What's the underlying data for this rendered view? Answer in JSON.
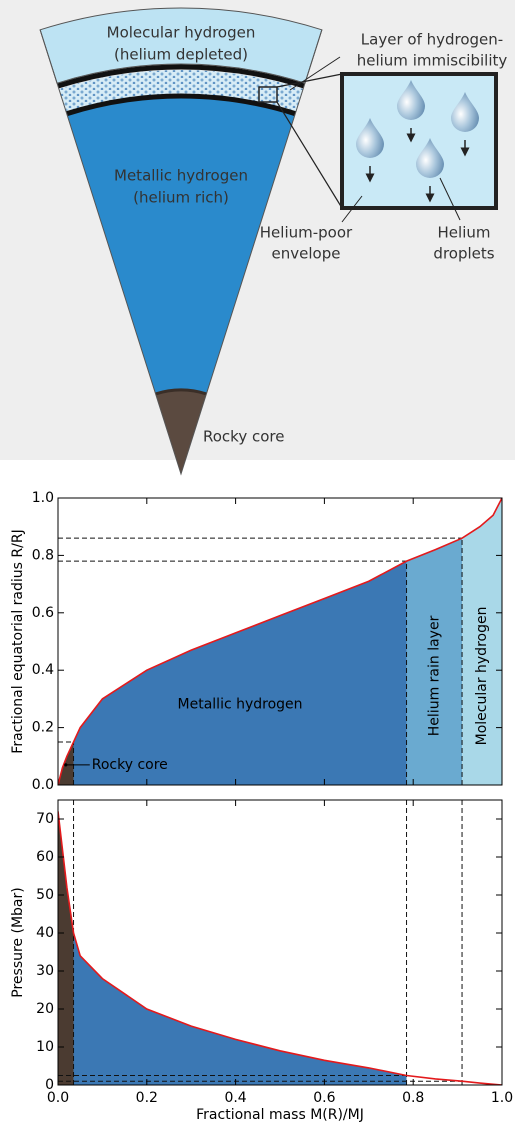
{
  "diagram": {
    "molecular_label": [
      "Molecular hydrogen",
      "(helium depleted)"
    ],
    "immiscibility_label": [
      "Layer of hydrogen-",
      "helium immiscibility"
    ],
    "metallic_label": [
      "Metallic hydrogen",
      "(helium rich)"
    ],
    "envelope_label": [
      "Helium-poor",
      "envelope"
    ],
    "droplets_label": [
      "Helium",
      "droplets"
    ],
    "core_label": "Rocky core"
  },
  "chart_data": [
    {
      "type": "area",
      "ylabel": "Fractional equatorial radius R/RJ",
      "x": [
        0,
        0.01,
        0.02,
        0.035,
        0.05,
        0.1,
        0.2,
        0.3,
        0.4,
        0.5,
        0.6,
        0.7,
        0.785,
        0.85,
        0.91,
        0.95,
        0.98,
        1.0
      ],
      "series": [
        {
          "color": "#e31a1c",
          "values": [
            0,
            0.06,
            0.1,
            0.15,
            0.2,
            0.3,
            0.4,
            0.47,
            0.53,
            0.59,
            0.65,
            0.71,
            0.78,
            0.82,
            0.86,
            0.9,
            0.94,
            1.0
          ]
        }
      ],
      "xlim": [
        0,
        1
      ],
      "ylim": [
        0,
        1
      ],
      "xticks": [
        0,
        0.2,
        0.4,
        0.6,
        0.8,
        1
      ],
      "yticks": [
        {
          "value": 0,
          "label": "0.0"
        },
        {
          "value": 0.2,
          "label": "0.2"
        },
        {
          "value": 0.4,
          "label": "0.4"
        },
        {
          "value": 0.6,
          "label": "0.6"
        },
        {
          "value": 0.8,
          "label": "0.8"
        },
        {
          "value": 1,
          "label": "1.0"
        }
      ],
      "regions": [
        {
          "label": "Rocky core",
          "start": 0,
          "end": 0.035,
          "color": "#4b3b31"
        },
        {
          "label": "Metallic hydrogen",
          "start": 0.035,
          "end": 0.785,
          "color": "#3b78b4"
        },
        {
          "label": "Helium rain layer",
          "start": 0.785,
          "end": 0.91,
          "color": "#6aaad0"
        },
        {
          "label": "Molecular hydrogen",
          "start": 0.91,
          "end": 1.0,
          "color": "#a9d8e8"
        }
      ],
      "boundaries": [
        {
          "x": 0.035,
          "y": 0.15
        },
        {
          "x": 0.785,
          "y": 0.78
        },
        {
          "x": 0.91,
          "y": 0.86
        }
      ],
      "boundary_lines": "to-curve"
    },
    {
      "type": "area",
      "ylabel": "Pressure (Mbar)",
      "xlabel": "Fractional mass M(R)/MJ",
      "x": [
        0,
        0.01,
        0.02,
        0.035,
        0.05,
        0.1,
        0.2,
        0.3,
        0.4,
        0.5,
        0.6,
        0.7,
        0.785,
        0.85,
        0.91,
        0.95,
        1.0
      ],
      "series": [
        {
          "color": "#e31a1c",
          "values": [
            72,
            62,
            52,
            40,
            34,
            28,
            20,
            15.5,
            12,
            9,
            6.5,
            4.5,
            2.5,
            1.6,
            1.0,
            0.5,
            0
          ]
        }
      ],
      "xlim": [
        0,
        1
      ],
      "ylim": [
        0,
        75
      ],
      "xticks": [
        {
          "value": 0,
          "label": "0.0"
        },
        {
          "value": 0.2,
          "label": "0.2"
        },
        {
          "value": 0.4,
          "label": "0.4"
        },
        {
          "value": 0.6,
          "label": "0.6"
        },
        {
          "value": 0.8,
          "label": "0.8"
        },
        {
          "value": 1,
          "label": "1.0"
        }
      ],
      "yticks": [
        0,
        10,
        20,
        30,
        40,
        50,
        60,
        70
      ],
      "regions": [
        {
          "start": 0,
          "end": 0.035,
          "color": "#4b3b31"
        },
        {
          "start": 0.035,
          "end": 0.785,
          "color": "#3b78b4"
        }
      ],
      "boundaries": [
        {
          "x": 0.035
        },
        {
          "x": 0.785,
          "y": 2.5
        },
        {
          "x": 0.91,
          "y": 1.0
        }
      ],
      "boundary_lines": "full"
    }
  ]
}
